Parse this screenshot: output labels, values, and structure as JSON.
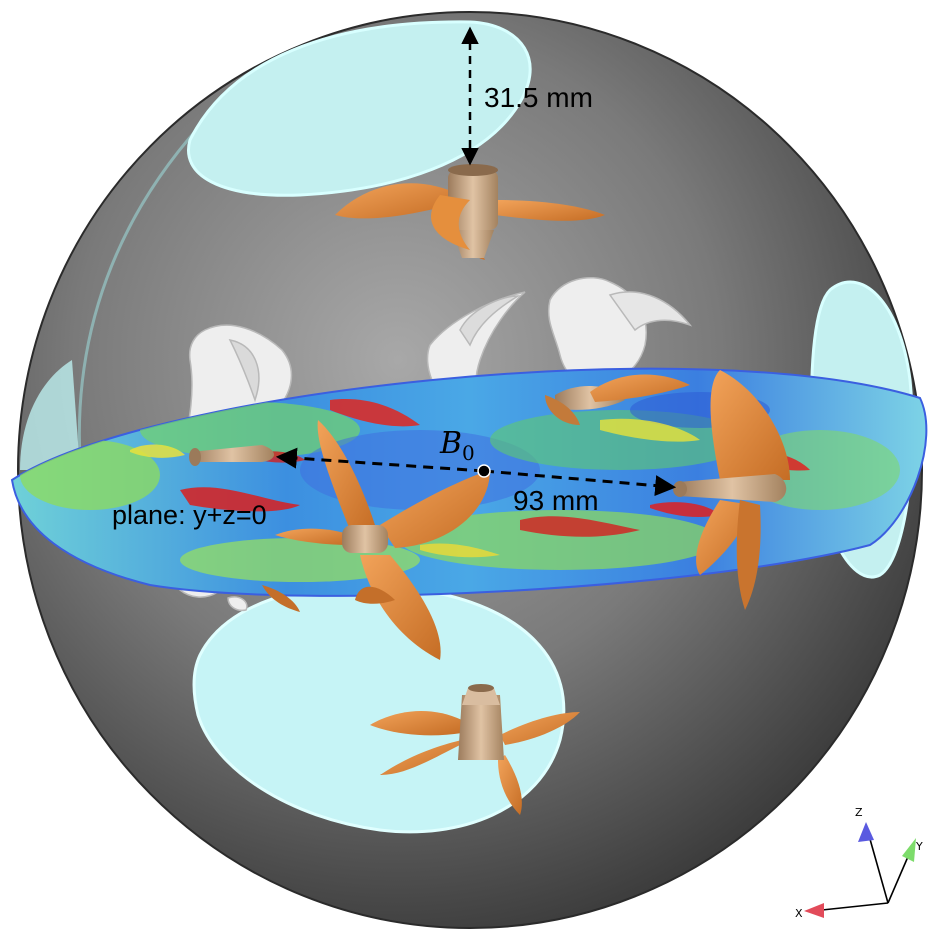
{
  "annotations": {
    "top_distance": "31.5 mm",
    "radial_distance": "93 mm",
    "plane_label": "plane: y+z=0",
    "point_symbol": "B",
    "point_subscript": "0"
  },
  "axes_triad": {
    "x": "X",
    "y": "Y",
    "z": "Z"
  },
  "colors": {
    "sphere_dark": "#3f3f3f",
    "sphere_light": "#8a8a8a",
    "window": "#c4f0f0",
    "propeller": "#e08a3c",
    "hub": "#c9a989",
    "vortex": "#ececec",
    "plane_low": "#2f5fd0",
    "plane_mid": "#7fd66a",
    "plane_high": "#d81e1e",
    "axis_x": "#e24b5a",
    "axis_y": "#7ddc6b",
    "axis_z": "#5a5ae0"
  }
}
